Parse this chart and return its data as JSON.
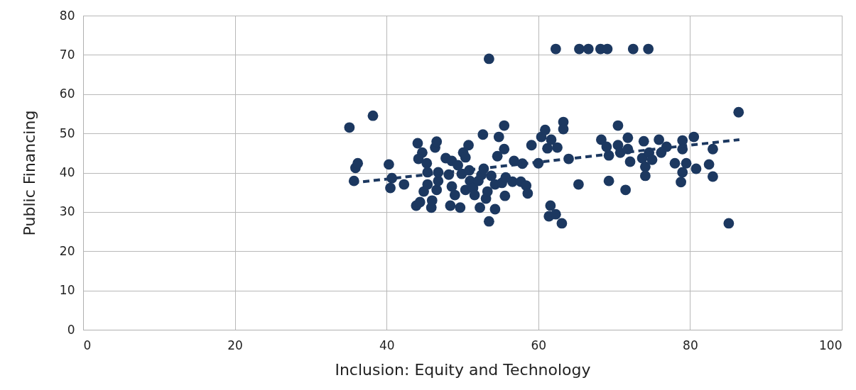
{
  "chart_data": {
    "type": "scatter",
    "xlabel": "Inclusion: Equity and Technology",
    "ylabel": "Public Financing",
    "xlim": [
      0,
      100
    ],
    "xticks": [
      0,
      20,
      40,
      60,
      80,
      100
    ],
    "ylim": [
      0,
      80
    ],
    "yticks": [
      0,
      10,
      20,
      30,
      40,
      50,
      60,
      70,
      80
    ],
    "grid": true,
    "series": [
      {
        "color": "#1c3860",
        "marker": "circle",
        "x": [
          35.1,
          38.2,
          35.9,
          36.2,
          35.7,
          40.3,
          40.7,
          40.5,
          42.3,
          43.9,
          44.1,
          44.7,
          44.2,
          45.3,
          44.9,
          45.4,
          44.4,
          45.9,
          46.0,
          45.4,
          46.4,
          46.6,
          46.6,
          46.8,
          46.8,
          47.8,
          48.2,
          48.4,
          48.6,
          49.0,
          48.6,
          49.4,
          49.7,
          50.1,
          50.4,
          50.8,
          49.9,
          50.9,
          50.4,
          51.0,
          51.4,
          51.6,
          52.1,
          52.3,
          52.5,
          52.7,
          52.8,
          53.1,
          53.3,
          53.5,
          53.5,
          53.8,
          54.3,
          54.3,
          54.6,
          54.8,
          55.2,
          55.5,
          55.5,
          55.7,
          55.6,
          56.6,
          56.8,
          57.7,
          57.9,
          58.4,
          58.6,
          59.1,
          60.0,
          60.4,
          60.9,
          61.2,
          61.4,
          61.6,
          61.7,
          62.3,
          62.3,
          62.5,
          63.1,
          63.3,
          63.3,
          64.0,
          65.3,
          65.4,
          66.6,
          68.2,
          69.1,
          68.3,
          69.0,
          69.3,
          69.3,
          70.5,
          70.5,
          70.8,
          71.5,
          71.8,
          71.8,
          72.1,
          72.5,
          73.9,
          73.7,
          74.1,
          74.1,
          74.5,
          74.6,
          75.0,
          75.9,
          76.2,
          76.9,
          78.0,
          78.8,
          79.0,
          79.0,
          79.0,
          79.5,
          80.5,
          80.8,
          82.5,
          83.0,
          83.0,
          85.1,
          86.4
        ],
        "values": [
          51.5,
          54.5,
          41.2,
          42.4,
          37.9,
          42.1,
          38.6,
          36.1,
          37.0,
          31.6,
          47.5,
          45.1,
          43.5,
          42.4,
          35.2,
          37.0,
          32.5,
          31.1,
          32.9,
          40.1,
          46.4,
          47.9,
          35.6,
          37.9,
          40.1,
          43.7,
          39.5,
          31.6,
          36.5,
          34.3,
          43.0,
          41.9,
          31.1,
          45.1,
          43.9,
          47.0,
          39.7,
          40.6,
          35.6,
          37.9,
          36.1,
          34.3,
          37.9,
          31.1,
          39.4,
          49.7,
          41.0,
          33.4,
          35.2,
          69.0,
          27.6,
          39.2,
          37.0,
          30.7,
          44.2,
          49.1,
          37.4,
          52.0,
          46.0,
          38.8,
          34.1,
          37.7,
          43.0,
          37.7,
          42.3,
          36.7,
          34.7,
          47.0,
          42.4,
          49.1,
          50.9,
          46.2,
          28.9,
          31.6,
          48.4,
          29.4,
          71.5,
          46.4,
          27.1,
          52.9,
          51.1,
          43.5,
          37.0,
          71.5,
          71.5,
          71.5,
          71.5,
          48.4,
          46.6,
          44.4,
          37.9,
          52.0,
          47.0,
          45.1,
          35.6,
          48.9,
          46.0,
          42.8,
          71.5,
          48.0,
          43.7,
          41.5,
          39.2,
          71.5,
          45.1,
          43.3,
          48.4,
          45.1,
          46.6,
          42.4,
          37.6,
          40.1,
          48.2,
          46.0,
          42.4,
          49.1,
          41.0,
          42.1,
          46.0,
          39.0,
          27.1,
          55.4
        ]
      },
      {
        "type": "line",
        "color": "#1c3860",
        "line_style": "dashed",
        "marker": "none",
        "x": [
          35.5,
          86.5
        ],
        "values": [
          37.4,
          48.4
        ]
      }
    ]
  }
}
